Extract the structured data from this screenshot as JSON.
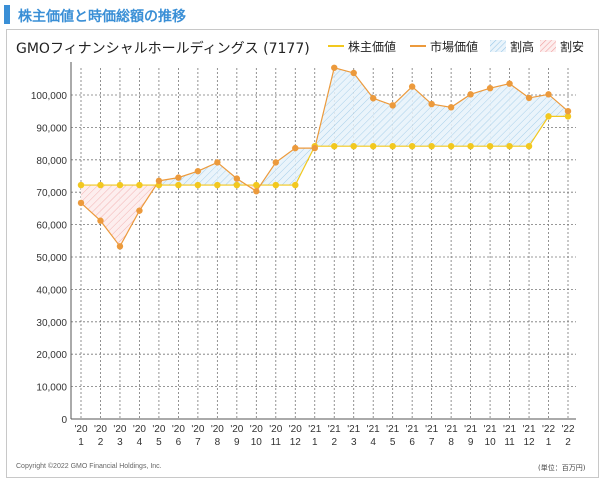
{
  "page": {
    "header_title": "株主価値と時価総額の推移",
    "copyright": "Copyright ©2022 GMO Financial Holdings, Inc.",
    "unit_note": "(単位：百万円)"
  },
  "colors": {
    "header_accent": "#3a8fd6",
    "shareholder_value": "#f2c81e",
    "market_value": "#ec9a3c",
    "premium_fill": "#9cc9e8",
    "discount_fill": "#f0a0a0",
    "grid": "#777777"
  },
  "chart_data": {
    "type": "line",
    "title": "GMOフィナンシャルホールディングス (7177)",
    "categories": [
      {
        "year": "'20",
        "month": "1"
      },
      {
        "year": "'20",
        "month": "2"
      },
      {
        "year": "'20",
        "month": "3"
      },
      {
        "year": "'20",
        "month": "4"
      },
      {
        "year": "'20",
        "month": "5"
      },
      {
        "year": "'20",
        "month": "6"
      },
      {
        "year": "'20",
        "month": "7"
      },
      {
        "year": "'20",
        "month": "8"
      },
      {
        "year": "'20",
        "month": "9"
      },
      {
        "year": "'20",
        "month": "10"
      },
      {
        "year": "'20",
        "month": "11"
      },
      {
        "year": "'20",
        "month": "12"
      },
      {
        "year": "'21",
        "month": "1"
      },
      {
        "year": "'21",
        "month": "2"
      },
      {
        "year": "'21",
        "month": "3"
      },
      {
        "year": "'21",
        "month": "4"
      },
      {
        "year": "'21",
        "month": "5"
      },
      {
        "year": "'21",
        "month": "6"
      },
      {
        "year": "'21",
        "month": "7"
      },
      {
        "year": "'21",
        "month": "8"
      },
      {
        "year": "'21",
        "month": "9"
      },
      {
        "year": "'21",
        "month": "10"
      },
      {
        "year": "'21",
        "month": "11"
      },
      {
        "year": "'21",
        "month": "12"
      },
      {
        "year": "'22",
        "month": "1"
      },
      {
        "year": "'22",
        "month": "2"
      }
    ],
    "series": [
      {
        "name": "株主価値",
        "values": [
          72200,
          72200,
          72200,
          72200,
          72200,
          72200,
          72200,
          72200,
          72200,
          72200,
          72200,
          72200,
          84200,
          84200,
          84200,
          84200,
          84200,
          84200,
          84200,
          84200,
          84200,
          84200,
          84200,
          84200,
          93400,
          93400
        ]
      },
      {
        "name": "市場価値",
        "values": [
          66700,
          61200,
          53300,
          64300,
          73500,
          74500,
          76500,
          79200,
          74200,
          70300,
          79200,
          83600,
          83600,
          108400,
          106800,
          99000,
          96800,
          102600,
          97200,
          96200,
          100200,
          102100,
          103500,
          99100,
          100200,
          95000
        ]
      }
    ],
    "legend": [
      {
        "label": "株主価値",
        "kind": "line",
        "color": "#f2c81e"
      },
      {
        "label": "市場価値",
        "kind": "line",
        "color": "#ec9a3c"
      },
      {
        "label": "割高",
        "kind": "hatch",
        "color": "#9cc9e8"
      },
      {
        "label": "割安",
        "kind": "hatch",
        "color": "#f0a0a0"
      }
    ],
    "yticks": [
      "0",
      "10,000",
      "20,000",
      "30,000",
      "40,000",
      "50,000",
      "60,000",
      "70,000",
      "80,000",
      "90,000",
      "100,000"
    ],
    "ylim": [
      0,
      110000
    ],
    "grid": true,
    "legend_position": "top-right"
  }
}
